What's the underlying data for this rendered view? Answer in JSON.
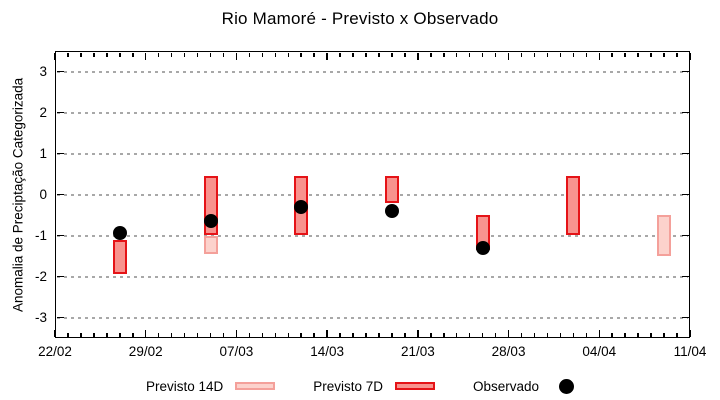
{
  "chart_data": {
    "type": "bar",
    "subtype": "range-bars-with-scatter-overlay",
    "title": "Rio Mamoré - Previsto x Observado",
    "xlabel": "",
    "ylabel": "Anomalia de Preciptação Categorizada",
    "ylim": [
      -3.5,
      3.5
    ],
    "x_range_days": [
      0,
      49
    ],
    "grid": "horizontal-dotted",
    "grid_color": "#a8a8a8",
    "legend_position": "bottom",
    "yticks": [
      {
        "label": "3",
        "value": 3
      },
      {
        "label": "2",
        "value": 2
      },
      {
        "label": "1",
        "value": 1
      },
      {
        "label": "0",
        "value": 0
      },
      {
        "label": "-1",
        "value": -1
      },
      {
        "label": "-2",
        "value": -2
      },
      {
        "label": "-3",
        "value": -3
      }
    ],
    "xticks": [
      {
        "label": "22/02",
        "day": 0
      },
      {
        "label": "29/02",
        "day": 7
      },
      {
        "label": "07/03",
        "day": 14
      },
      {
        "label": "14/03",
        "day": 21
      },
      {
        "label": "21/03",
        "day": 28
      },
      {
        "label": "28/03",
        "day": 35
      },
      {
        "label": "04/04",
        "day": 42
      },
      {
        "label": "11/04",
        "day": 49
      }
    ],
    "series": [
      {
        "name": "Previsto 14D",
        "kind": "range-bar",
        "fill": "#fcd2cc",
        "border": "#f4a09a",
        "points": [
          {
            "date": "05/03",
            "day": 12,
            "low": -1.45,
            "high": -1.0
          },
          {
            "date": "09/04",
            "day": 47,
            "low": -1.5,
            "high": -0.5
          }
        ]
      },
      {
        "name": "Previsto 7D",
        "kind": "range-bar",
        "fill": "#f8938e",
        "border": "#e51317",
        "points": [
          {
            "date": "27/02",
            "day": 5,
            "low": -1.95,
            "high": -1.1
          },
          {
            "date": "05/03",
            "day": 12,
            "low": -1.0,
            "high": 0.45
          },
          {
            "date": "12/03",
            "day": 19,
            "low": -1.0,
            "high": 0.45
          },
          {
            "date": "19/03",
            "day": 26,
            "low": -0.2,
            "high": 0.45
          },
          {
            "date": "26/03",
            "day": 33,
            "low": -1.35,
            "high": -0.5
          },
          {
            "date": "02/04",
            "day": 40,
            "low": -1.0,
            "high": 0.45
          }
        ]
      },
      {
        "name": "Observado",
        "kind": "scatter",
        "color": "#000000",
        "points": [
          {
            "date": "27/02",
            "day": 5,
            "value": -0.95
          },
          {
            "date": "05/03",
            "day": 12,
            "value": -0.65
          },
          {
            "date": "12/03",
            "day": 19,
            "value": -0.3
          },
          {
            "date": "19/03",
            "day": 26,
            "value": -0.4
          },
          {
            "date": "26/03",
            "day": 33,
            "value": -1.3
          }
        ]
      }
    ]
  }
}
